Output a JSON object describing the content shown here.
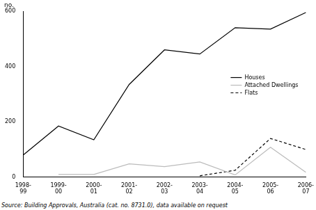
{
  "chart_data": {
    "type": "line",
    "y_label": "no.",
    "source": "Source: Building Approvals, Australia (cat. no. 8731.0), data available on request",
    "categories": [
      "1998-99",
      "1999-00",
      "2000-01",
      "2001-02",
      "2002-03",
      "2003-04",
      "2004-05",
      "2005-06",
      "2006-07"
    ],
    "series": [
      {
        "name": "Houses",
        "color": "#000000",
        "line_style": "solid",
        "values": [
          80,
          185,
          135,
          335,
          460,
          445,
          540,
          535,
          595
        ]
      },
      {
        "name": "Attached Dwellings",
        "color": "#bbbbbb",
        "line_style": "solid",
        "values": [
          null,
          10,
          10,
          48,
          38,
          55,
          8,
          108,
          18
        ]
      },
      {
        "name": "Flats",
        "color": "#000000",
        "line_style": "dashed",
        "values": [
          null,
          null,
          null,
          null,
          null,
          5,
          25,
          140,
          100
        ]
      }
    ],
    "ylim": [
      0,
      600
    ],
    "yticks": [
      0,
      200,
      400,
      600
    ],
    "grid": false,
    "legend": "right",
    "marker": "none"
  }
}
